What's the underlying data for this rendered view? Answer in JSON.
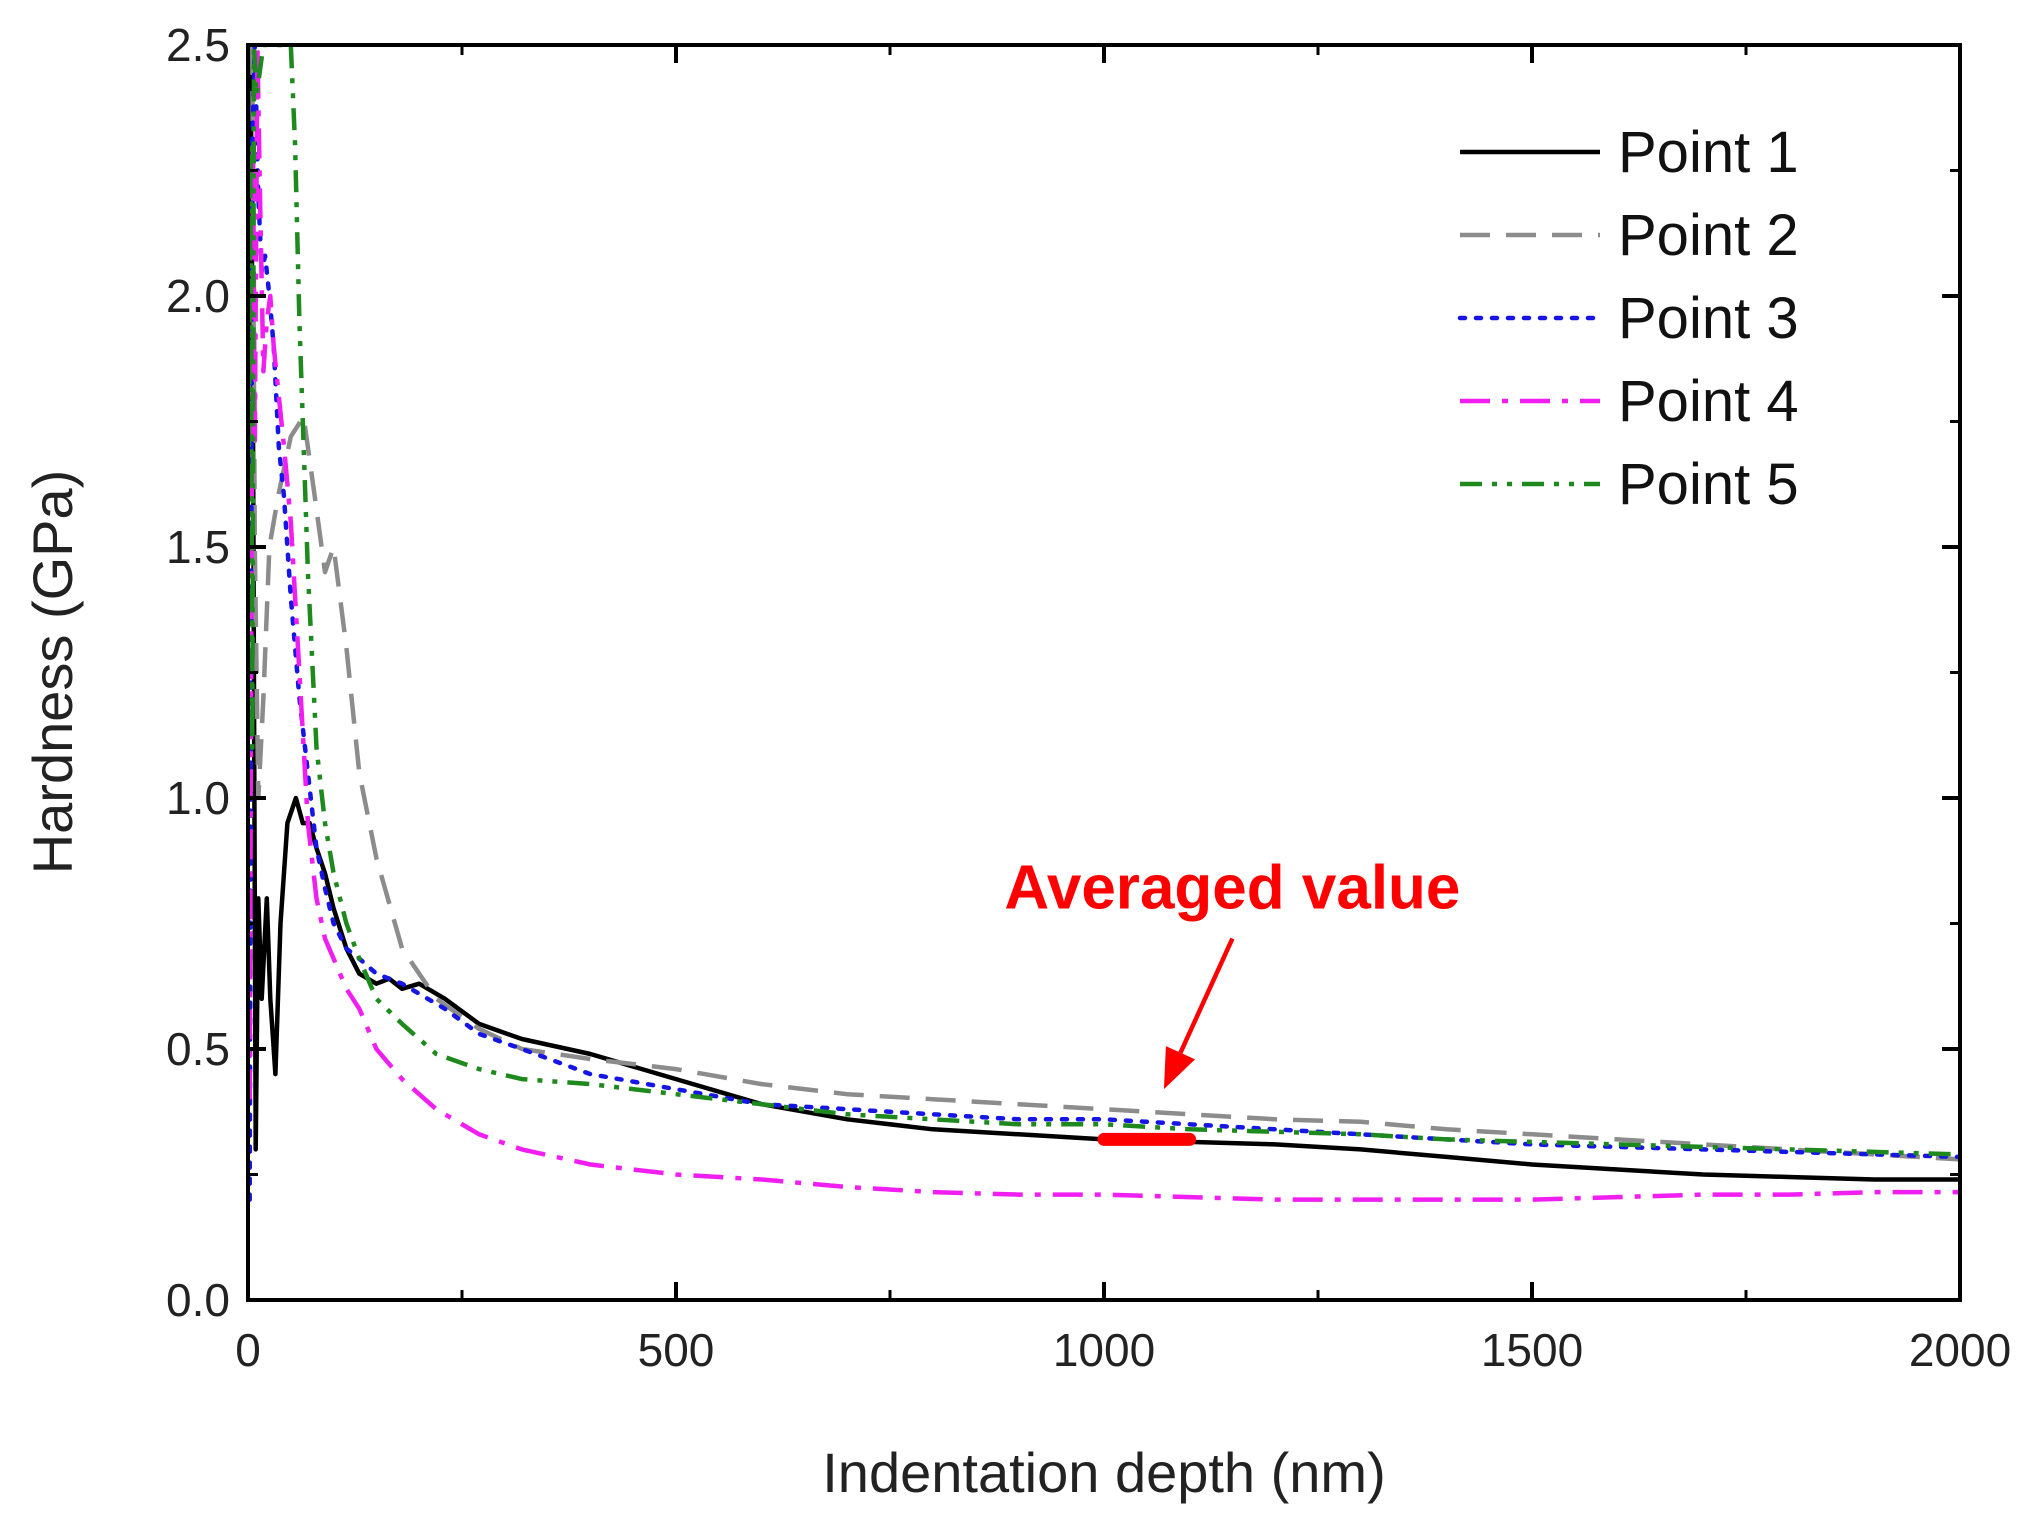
{
  "chart_data": {
    "type": "line",
    "title": "",
    "xlabel": "Indentation depth (nm)",
    "ylabel": "Hardness (GPa)",
    "xlim": [
      0,
      2000
    ],
    "ylim": [
      0,
      2.5
    ],
    "xticks": [
      0,
      500,
      1000,
      1500,
      2000
    ],
    "xtick_labels": [
      "0",
      "500",
      "1000",
      "1500",
      "2000"
    ],
    "yticks": [
      0,
      0.5,
      1.0,
      1.5,
      2.0,
      2.5
    ],
    "ytick_labels": [
      "0.0",
      "0.5",
      "1.0",
      "1.5",
      "2.0",
      "2.5"
    ],
    "grid": false,
    "legend_position": "top-right",
    "series": [
      {
        "name": "Point 1",
        "color": "#000000",
        "style": "solid",
        "x": [
          3,
          6,
          9,
          12,
          16,
          22,
          26,
          32,
          38,
          46,
          56,
          64,
          72,
          80,
          90,
          100,
          115,
          130,
          150,
          165,
          180,
          200,
          230,
          270,
          320,
          400,
          500,
          600,
          700,
          800,
          900,
          1000,
          1100,
          1200,
          1300,
          1400,
          1500,
          1600,
          1700,
          1800,
          1900,
          2000
        ],
        "y": [
          2.5,
          1.7,
          0.3,
          0.8,
          0.6,
          0.8,
          0.6,
          0.45,
          0.75,
          0.95,
          1.0,
          0.95,
          0.95,
          0.9,
          0.85,
          0.78,
          0.7,
          0.65,
          0.63,
          0.64,
          0.62,
          0.63,
          0.6,
          0.55,
          0.52,
          0.49,
          0.44,
          0.39,
          0.36,
          0.34,
          0.33,
          0.32,
          0.315,
          0.31,
          0.3,
          0.285,
          0.27,
          0.26,
          0.25,
          0.245,
          0.24,
          0.24
        ]
      },
      {
        "name": "Point 2",
        "color": "#8c8c8c",
        "style": "dashed",
        "x": [
          5,
          8,
          12,
          18,
          25,
          35,
          50,
          65,
          78,
          90,
          100,
          115,
          130,
          150,
          180,
          220,
          270,
          320,
          400,
          500,
          600,
          700,
          800,
          900,
          1000,
          1100,
          1200,
          1300,
          1400,
          1500,
          1600,
          1700,
          1800,
          1900,
          2000
        ],
        "y": [
          2.5,
          1.5,
          1.0,
          1.2,
          1.5,
          1.6,
          1.72,
          1.76,
          1.6,
          1.45,
          1.5,
          1.3,
          1.05,
          0.88,
          0.7,
          0.6,
          0.54,
          0.5,
          0.48,
          0.46,
          0.43,
          0.41,
          0.4,
          0.39,
          0.38,
          0.37,
          0.36,
          0.355,
          0.34,
          0.33,
          0.32,
          0.31,
          0.3,
          0.29,
          0.28
        ]
      },
      {
        "name": "Point 3",
        "color": "#1515e6",
        "style": "dotted",
        "x": [
          2,
          5,
          8,
          12,
          16,
          20,
          25,
          30,
          36,
          42,
          50,
          60,
          70,
          80,
          90,
          100,
          115,
          130,
          150,
          180,
          200,
          230,
          270,
          320,
          400,
          500,
          600,
          700,
          800,
          900,
          1000,
          1100,
          1200,
          1300,
          1400,
          1500,
          1600,
          1700,
          1800,
          1900,
          2000
        ],
        "y": [
          0.2,
          2.3,
          2.5,
          2.2,
          2.05,
          2.08,
          2.0,
          1.9,
          1.7,
          1.6,
          1.4,
          1.2,
          1.05,
          0.9,
          0.82,
          0.75,
          0.7,
          0.68,
          0.65,
          0.63,
          0.61,
          0.58,
          0.53,
          0.5,
          0.45,
          0.42,
          0.39,
          0.38,
          0.37,
          0.36,
          0.36,
          0.35,
          0.34,
          0.33,
          0.32,
          0.31,
          0.305,
          0.3,
          0.295,
          0.29,
          0.285
        ]
      },
      {
        "name": "Point 4",
        "color": "#f01ef0",
        "style": "dash-dot",
        "x": [
          2,
          4,
          6,
          8,
          11,
          14,
          18,
          22,
          26,
          30,
          36,
          42,
          50,
          60,
          70,
          80,
          90,
          100,
          115,
          130,
          150,
          180,
          220,
          270,
          320,
          400,
          500,
          600,
          700,
          800,
          900,
          1000,
          1100,
          1200,
          1300,
          1400,
          1500,
          1600,
          1700,
          1800,
          1900,
          2000
        ],
        "y": [
          0.4,
          1.4,
          2.3,
          1.7,
          2.5,
          2.2,
          1.85,
          1.95,
          2.0,
          1.9,
          1.8,
          1.7,
          1.55,
          1.25,
          0.95,
          0.8,
          0.72,
          0.68,
          0.62,
          0.58,
          0.5,
          0.44,
          0.38,
          0.33,
          0.3,
          0.27,
          0.25,
          0.24,
          0.225,
          0.215,
          0.21,
          0.21,
          0.205,
          0.2,
          0.2,
          0.2,
          0.2,
          0.205,
          0.21,
          0.21,
          0.215,
          0.215
        ]
      },
      {
        "name": "Point 5",
        "color": "#1e8a1e",
        "style": "dash-dot-dot",
        "x": [
          1,
          3,
          5,
          7,
          10,
          14,
          18,
          22,
          26,
          30,
          36,
          42,
          50,
          55,
          60,
          70,
          80,
          90,
          100,
          115,
          130,
          150,
          180,
          220,
          270,
          320,
          400,
          500,
          600,
          700,
          800,
          900,
          1000,
          1100,
          1200,
          1300,
          1400,
          1500,
          1600,
          1700,
          1800,
          1900,
          2000
        ],
        "y": [
          1.7,
          2.3,
          1.1,
          2.5,
          2.4,
          2.45,
          2.5,
          2.5,
          2.5,
          2.5,
          2.5,
          2.5,
          2.5,
          2.3,
          1.95,
          1.45,
          1.1,
          0.95,
          0.85,
          0.75,
          0.68,
          0.6,
          0.55,
          0.49,
          0.46,
          0.44,
          0.43,
          0.41,
          0.39,
          0.37,
          0.36,
          0.35,
          0.35,
          0.34,
          0.335,
          0.33,
          0.32,
          0.315,
          0.31,
          0.305,
          0.3,
          0.295,
          0.29
        ]
      }
    ],
    "annotations": [
      {
        "text": "Averaged value",
        "color": "#ff0000",
        "arrow_from": [
          1150,
          0.72
        ],
        "arrow_to": [
          1070,
          0.42
        ],
        "highlight_range": [
          1000,
          1100
        ],
        "highlight_y": 0.32
      }
    ]
  }
}
